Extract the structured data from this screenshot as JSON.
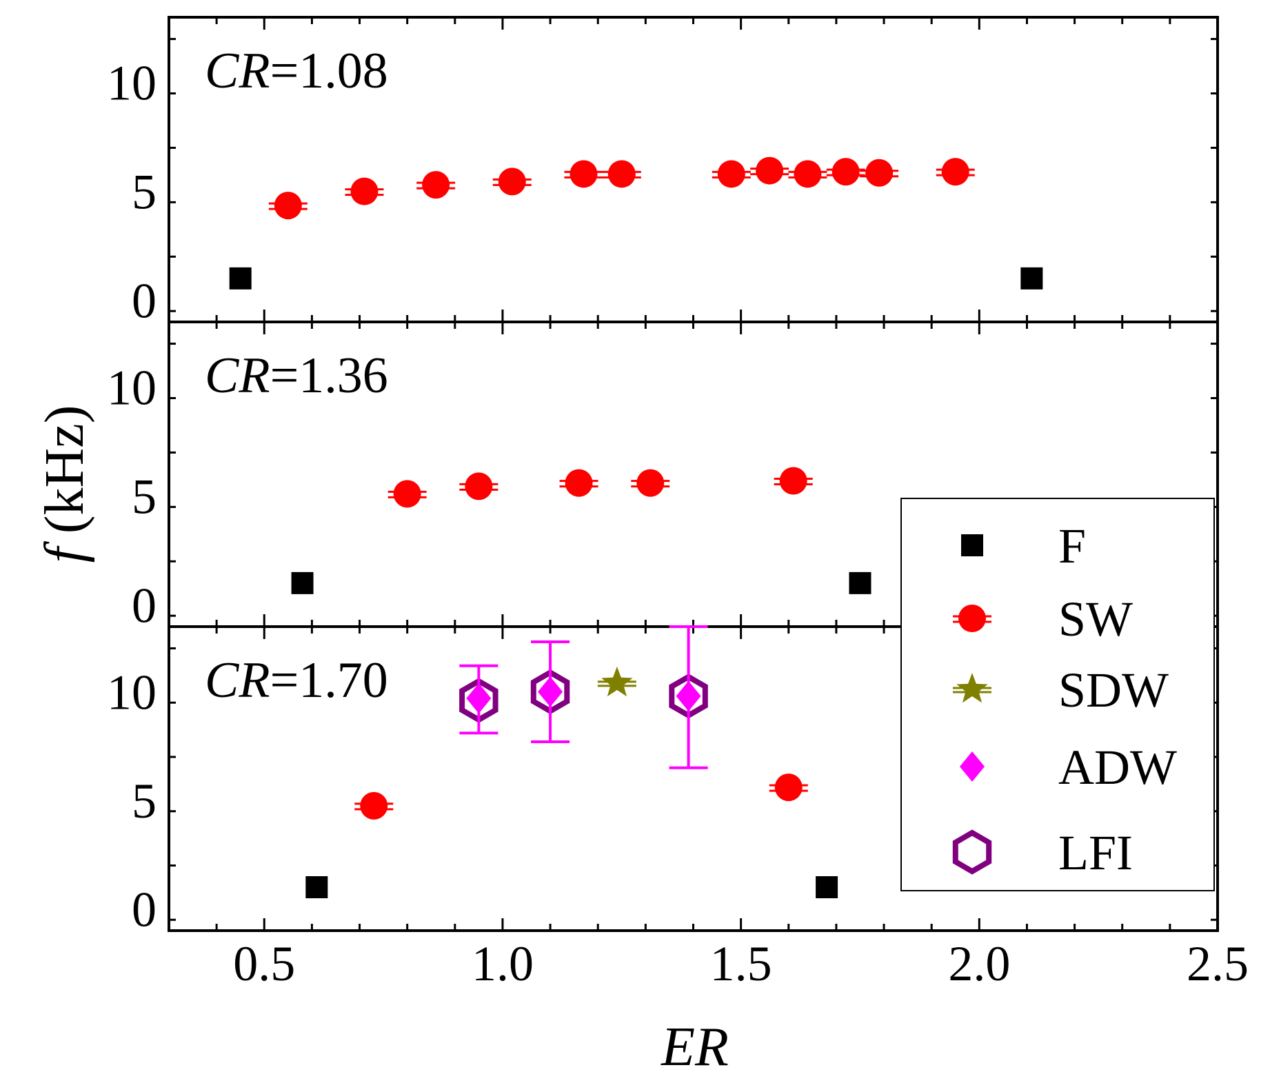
{
  "chart_data": {
    "type": "scatter",
    "xlabel": "ER",
    "ylabel_italic": "f",
    "ylabel_rest": " (kHz)",
    "xlim": [
      0.3,
      2.5
    ],
    "ylim": [
      -1,
      13
    ],
    "x_ticks": [
      "0.5",
      "1.0",
      "1.5",
      "2.0",
      "2.5"
    ],
    "y_ticks": [
      "0",
      "5",
      "10"
    ],
    "legend": {
      "placement": "right",
      "entries": [
        {
          "key": "F",
          "label": "F"
        },
        {
          "key": "SW",
          "label": "SW"
        },
        {
          "key": "SDW",
          "label": "SDW"
        },
        {
          "key": "ADW",
          "label": "ADW"
        },
        {
          "key": "LFI",
          "label": "LFI"
        }
      ]
    },
    "colors": {
      "F": "#000000",
      "SW": "#ff0000",
      "SDW": "#808000",
      "ADW": "#ff00ff",
      "LFI": "#800080"
    },
    "panels": [
      {
        "label_italic": "CR",
        "label_rest": "=1.08",
        "series": {
          "F": [
            [
              0.45,
              1.0
            ],
            [
              2.11,
              1.0
            ]
          ],
          "SW": [
            [
              0.55,
              4.35
            ],
            [
              0.71,
              5.0
            ],
            [
              0.86,
              5.3
            ],
            [
              1.02,
              5.45
            ],
            [
              1.17,
              5.8
            ],
            [
              1.25,
              5.8
            ],
            [
              1.48,
              5.8
            ],
            [
              1.56,
              5.95
            ],
            [
              1.64,
              5.8
            ],
            [
              1.72,
              5.9
            ],
            [
              1.79,
              5.85
            ],
            [
              1.95,
              5.9
            ]
          ],
          "SDW": [],
          "ADW": [],
          "LFI": []
        }
      },
      {
        "label_italic": "CR",
        "label_rest": "=1.36",
        "series": {
          "F": [
            [
              0.58,
              1.0
            ],
            [
              1.75,
              1.0
            ]
          ],
          "SW": [
            [
              0.8,
              5.1
            ],
            [
              0.95,
              5.45
            ],
            [
              1.16,
              5.6
            ],
            [
              1.31,
              5.6
            ],
            [
              1.61,
              5.7
            ]
          ],
          "SDW": [],
          "ADW": [],
          "LFI": []
        }
      },
      {
        "label_italic": "CR",
        "label_rest": "=1.70",
        "series": {
          "F": [
            [
              0.61,
              1.0
            ],
            [
              1.68,
              1.0
            ]
          ],
          "SW": [
            [
              0.73,
              4.75
            ],
            [
              1.6,
              5.6
            ]
          ],
          "SDW": [
            [
              1.24,
              10.4
            ]
          ],
          "ADW": [
            {
              "x": 0.95,
              "y": 9.7,
              "err_low": 8.1,
              "err_high": 11.2
            },
            {
              "x": 1.1,
              "y": 10.0,
              "err_low": 7.7,
              "err_high": 12.3
            },
            {
              "x": 1.39,
              "y": 9.8,
              "err_low": 6.5,
              "err_high": 13.0
            }
          ],
          "LFI": [
            [
              0.95,
              9.6
            ],
            [
              1.1,
              10.0
            ],
            [
              1.39,
              9.8
            ]
          ]
        }
      }
    ]
  }
}
